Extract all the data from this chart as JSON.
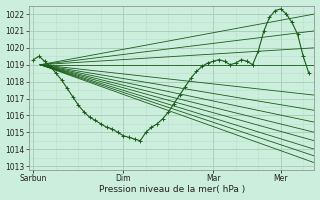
{
  "xlabel": "Pression niveau de la mer( hPa )",
  "bg_color": "#cceedd",
  "grid_major_color": "#aaccbb",
  "grid_minor_color": "#bbddcc",
  "line_color": "#1a5c1a",
  "ylim": [
    1012.8,
    1022.5
  ],
  "yticks": [
    1013,
    1014,
    1015,
    1016,
    1017,
    1018,
    1019,
    1020,
    1021,
    1022
  ],
  "day_labels": [
    "Sarbun",
    "Dim",
    "Mar",
    "Mer"
  ],
  "day_positions": [
    0,
    4,
    8,
    11
  ],
  "xlim": [
    -0.2,
    12.5
  ],
  "origin_x": 0.3,
  "origin_y": 1019.0,
  "fan_endpoints": [
    [
      12.5,
      1013.2
    ],
    [
      12.5,
      1013.6
    ],
    [
      12.5,
      1014.0
    ],
    [
      12.5,
      1014.5
    ],
    [
      12.5,
      1015.0
    ],
    [
      12.5,
      1015.6
    ],
    [
      12.5,
      1016.3
    ],
    [
      12.5,
      1017.2
    ],
    [
      12.5,
      1019.0
    ],
    [
      12.5,
      1020.0
    ],
    [
      12.5,
      1021.0
    ],
    [
      12.5,
      1022.0
    ]
  ],
  "detailed_line_x": [
    0.0,
    0.25,
    0.5,
    0.75,
    1.0,
    1.25,
    1.5,
    1.75,
    2.0,
    2.25,
    2.5,
    2.75,
    3.0,
    3.25,
    3.5,
    3.75,
    4.0,
    4.25,
    4.5,
    4.75,
    5.0,
    5.25,
    5.5,
    5.75,
    6.0,
    6.25,
    6.5,
    6.75,
    7.0,
    7.25,
    7.5,
    7.75,
    8.0,
    8.25,
    8.5,
    8.75,
    9.0,
    9.25,
    9.5,
    9.75,
    10.0,
    10.25,
    10.5,
    10.75,
    11.0,
    11.25,
    11.5,
    11.75,
    12.0,
    12.25
  ],
  "detailed_line_y": [
    1019.3,
    1019.5,
    1019.2,
    1018.9,
    1018.5,
    1018.1,
    1017.6,
    1017.1,
    1016.6,
    1016.2,
    1015.9,
    1015.7,
    1015.5,
    1015.3,
    1015.2,
    1015.0,
    1014.8,
    1014.7,
    1014.6,
    1014.5,
    1015.0,
    1015.3,
    1015.5,
    1015.8,
    1016.2,
    1016.7,
    1017.2,
    1017.7,
    1018.2,
    1018.6,
    1018.9,
    1019.1,
    1019.2,
    1019.3,
    1019.2,
    1019.0,
    1019.1,
    1019.3,
    1019.2,
    1019.0,
    1019.8,
    1021.0,
    1021.8,
    1022.2,
    1022.3,
    1022.0,
    1021.5,
    1020.8,
    1019.5,
    1018.5
  ]
}
